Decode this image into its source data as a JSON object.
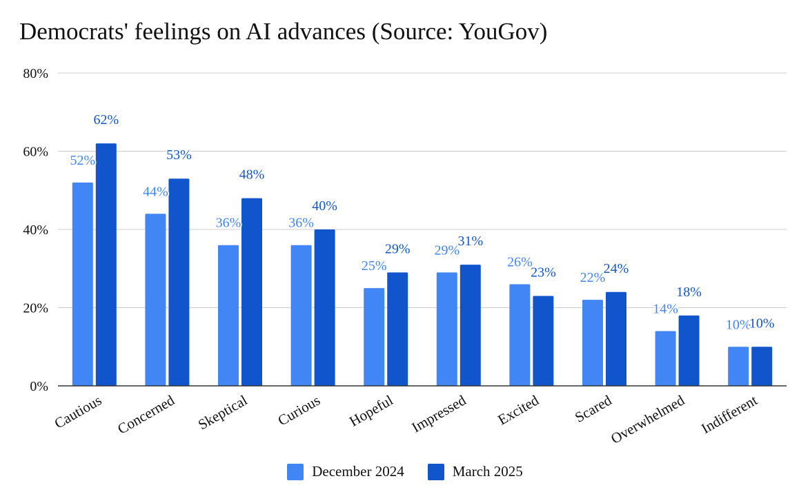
{
  "chart_data": {
    "type": "bar",
    "title": "Democrats' feelings on AI advances (Source: YouGov)",
    "xlabel": "",
    "ylabel": "",
    "ylim": [
      0,
      80
    ],
    "yticks": [
      0,
      20,
      40,
      60,
      80
    ],
    "ytick_format": "%",
    "grid": true,
    "legend_position": "bottom",
    "categories": [
      "Cautious",
      "Concerned",
      "Skeptical",
      "Curious",
      "Hopeful",
      "Impressed",
      "Excited",
      "Scared",
      "Overwhelmed",
      "Indifferent"
    ],
    "series": [
      {
        "name": "December 2024",
        "color": "#4285f4",
        "values": [
          52,
          44,
          36,
          36,
          25,
          29,
          26,
          22,
          14,
          10
        ],
        "labels": [
          "52%",
          "44%",
          "36%",
          "36%",
          "25%",
          "29%",
          "26%",
          "22%",
          "14%",
          "10%"
        ]
      },
      {
        "name": "March 2025",
        "color": "#1155cc",
        "values": [
          62,
          53,
          48,
          40,
          29,
          31,
          23,
          24,
          18,
          10
        ],
        "labels": [
          "62%",
          "53%",
          "48%",
          "40%",
          "29%",
          "31%",
          "23%",
          "24%",
          "18%",
          "10%"
        ]
      }
    ]
  }
}
